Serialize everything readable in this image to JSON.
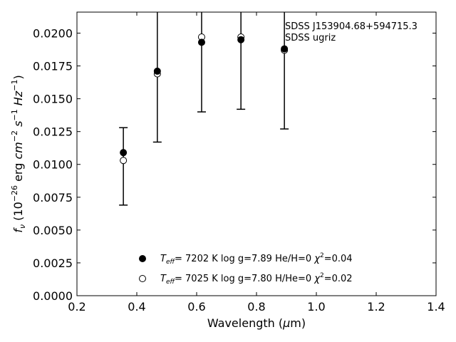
{
  "chart_data": {
    "type": "scatter",
    "xlabel": "Wavelength (μm)",
    "ylabel": "f_ν (10^-26 erg cm^-2 s^-1 Hz^-1)",
    "xlim": [
      0.2,
      1.4
    ],
    "ylim": [
      0.0,
      0.0216
    ],
    "x_ticks": [
      "0.2",
      "0.4",
      "0.6",
      "0.8",
      "1.0",
      "1.2",
      "1.4"
    ],
    "y_ticks": [
      "0.0000",
      "0.0025",
      "0.0050",
      "0.0075",
      "0.0100",
      "0.0125",
      "0.0150",
      "0.0175",
      "0.0200"
    ],
    "grid": false,
    "annotation": [
      "SDSS J153904.68+594715.3",
      "SDSS ugriz"
    ],
    "observed": {
      "x": [
        0.3551,
        0.4686,
        0.6166,
        0.748,
        0.8932
      ],
      "y": [
        0.0103,
        0.0169,
        0.0197,
        0.0197,
        0.0187
      ],
      "yerr_low": [
        0.0069,
        0.0117,
        0.014,
        0.0142,
        0.0127
      ],
      "yerr_high": [
        0.0128,
        0.0221,
        0.0221,
        0.0221,
        0.0221
      ]
    },
    "series": [
      {
        "marker": "filled-circle",
        "label": "T_eff= 7202 K  log g=7.89  He/H=0  χ²=0.04",
        "x": [
          0.3551,
          0.4686,
          0.6166,
          0.748,
          0.8932
        ],
        "y": [
          0.0109,
          0.0171,
          0.0193,
          0.0195,
          0.0188
        ]
      },
      {
        "marker": "open-circle",
        "label": "T_eff= 7025 K  log g=7.80  H/He=0  χ²=0.02",
        "x": [
          0.3551,
          0.4686,
          0.6166,
          0.748,
          0.8932
        ],
        "y": [
          0.0103,
          0.0169,
          0.0197,
          0.0197,
          0.0187
        ]
      }
    ],
    "legend_position": "lower-center"
  }
}
